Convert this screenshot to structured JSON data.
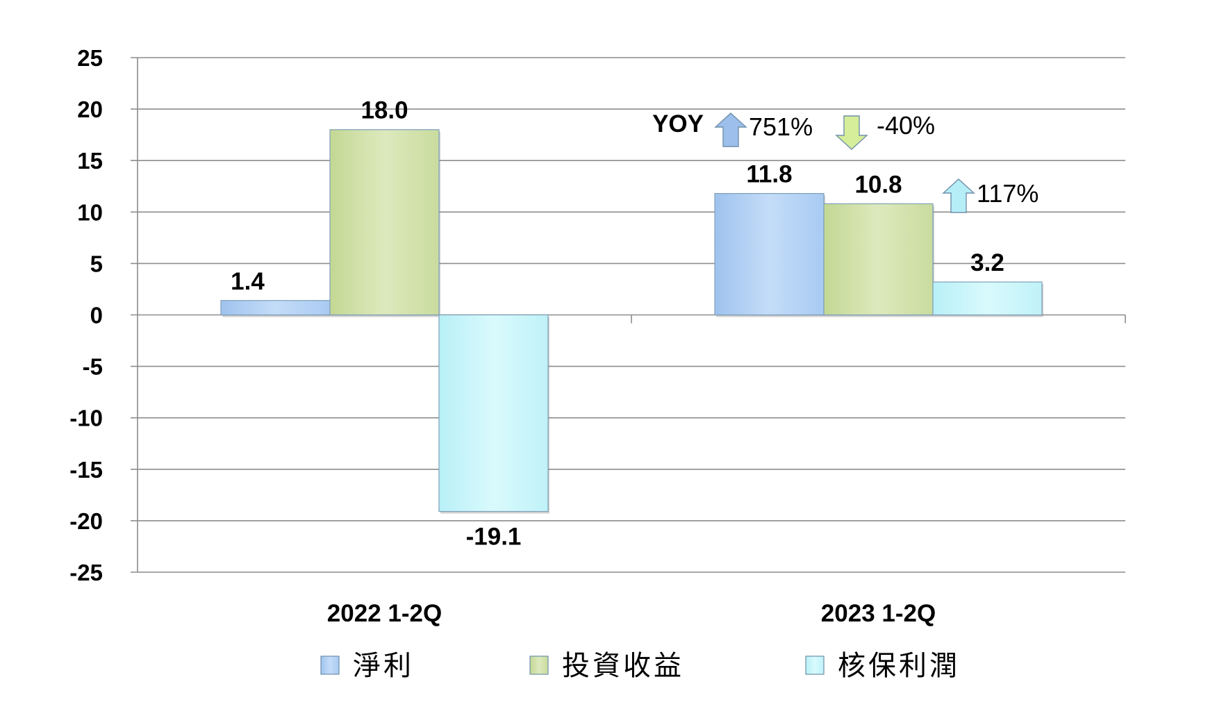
{
  "chart_data": {
    "type": "bar",
    "categories": [
      "2022 1-2Q",
      "2023 1-2Q"
    ],
    "series": [
      {
        "name": "淨利",
        "values": [
          1.4,
          11.8
        ],
        "color": "#b4d4f6"
      },
      {
        "name": "投資收益",
        "values": [
          18.0,
          10.8
        ],
        "color": "#d2e2aa"
      },
      {
        "name": "核保利潤",
        "values": [
          -19.1,
          3.2
        ],
        "color": "#ccf7fb"
      }
    ],
    "data_labels": [
      [
        "1.4",
        "11.8"
      ],
      [
        "18.0",
        "10.8"
      ],
      [
        "-19.1",
        "3.2"
      ]
    ],
    "ylim": [
      -25,
      25
    ],
    "yticks": [
      25,
      20,
      15,
      10,
      5,
      0,
      -5,
      -10,
      -15,
      -20,
      -25
    ],
    "ytick_labels": [
      "25",
      "20",
      "15",
      "10",
      "5",
      "0",
      "-5",
      "-10",
      "-15",
      "-20",
      "-25"
    ],
    "grid": true,
    "legend_position": "bottom",
    "title": "",
    "xlabel": "",
    "ylabel": "",
    "annotations": {
      "yoy_label": "YOY",
      "items": [
        {
          "series": "淨利",
          "direction": "up",
          "text": "751%",
          "color": "#9dbfec"
        },
        {
          "series": "投資收益",
          "direction": "down",
          "text": "-40%",
          "color": "#d6ee9a"
        },
        {
          "series": "核保利潤",
          "direction": "up",
          "text": "117%",
          "color": "#b6eef8"
        }
      ]
    }
  }
}
